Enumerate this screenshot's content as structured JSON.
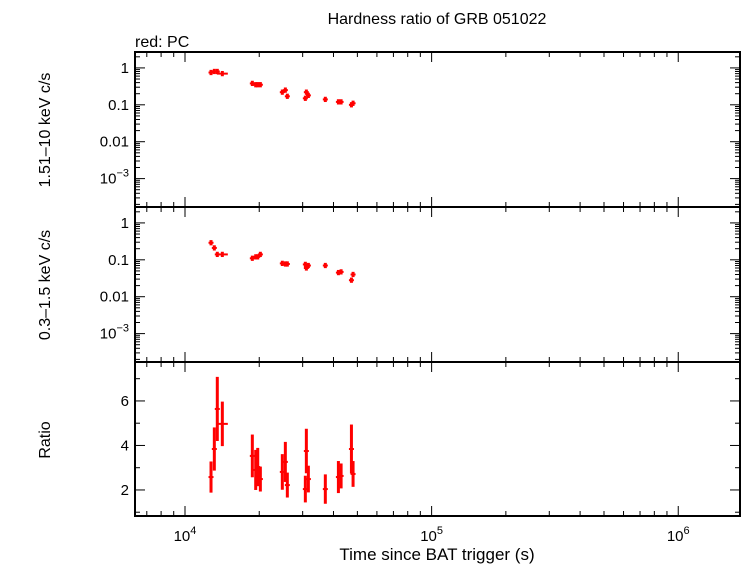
{
  "chart_data": [
    {
      "type": "scatter",
      "title": "Hardness ratio of GRB 051022",
      "legend": "red: PC",
      "series_color": "#ff0000",
      "xlabel": "Time since BAT trigger (s)",
      "xscale": "log",
      "xlim": [
        6270,
        1780000
      ],
      "xticks": [
        {
          "v": 10000,
          "b": "10",
          "e": "4"
        },
        {
          "v": 100000,
          "b": "10",
          "e": "5"
        },
        {
          "v": 1000000,
          "b": "10",
          "e": "6"
        }
      ],
      "panels": [
        {
          "ylabel": "1.51–10 keV c/s",
          "yscale": "log",
          "ylim": [
            0.00017,
            2.7
          ],
          "yticks": [
            {
              "v": 1,
              "b": "1",
              "e": ""
            },
            {
              "v": 0.1,
              "b": "0.1",
              "e": ""
            },
            {
              "v": 0.01,
              "b": "0.01",
              "e": ""
            },
            {
              "v": 0.001,
              "b": "10",
              "e": "−3"
            }
          ],
          "y": [
            0.75,
            0.8,
            0.8,
            0.7,
            0.38,
            0.35,
            0.35,
            0.35,
            0.22,
            0.25,
            0.17,
            0.15,
            0.22,
            0.18,
            0.14,
            0.12,
            0.12,
            0.1,
            0.11
          ]
        },
        {
          "ylabel": "0.3–1.5 keV c/s",
          "yscale": "log",
          "ylim": [
            0.00017,
            2.7
          ],
          "yticks": [
            {
              "v": 1,
              "b": "1",
              "e": ""
            },
            {
              "v": 0.1,
              "b": "0.1",
              "e": ""
            },
            {
              "v": 0.01,
              "b": "0.01",
              "e": ""
            },
            {
              "v": 0.001,
              "b": "10",
              "e": "−3"
            }
          ],
          "y": [
            0.29,
            0.21,
            0.14,
            0.14,
            0.11,
            0.12,
            0.12,
            0.14,
            0.08,
            0.077,
            0.077,
            0.075,
            0.06,
            0.07,
            0.07,
            0.045,
            0.047,
            0.028,
            0.04
          ]
        },
        {
          "ylabel": "Ratio",
          "yscale": "linear",
          "ylim": [
            0.83,
            7.75
          ],
          "yticks": [
            {
              "v": 2,
              "b": "2",
              "e": ""
            },
            {
              "v": 4,
              "b": "4",
              "e": ""
            },
            {
              "v": 6,
              "b": "6",
              "e": ""
            }
          ],
          "y": [
            2.58,
            3.84,
            5.64,
            4.97,
            3.53,
            2.9,
            3.03,
            2.49,
            2.81,
            3.26,
            2.22,
            2.04,
            3.75,
            2.49,
            2.04,
            2.58,
            2.63,
            3.84,
            2.72
          ],
          "yerr": [
            0.7,
            0.97,
            1.44,
            1.0,
            0.96,
            0.9,
            0.86,
            0.56,
            0.8,
            0.9,
            0.56,
            0.6,
            1.0,
            0.6,
            0.66,
            0.72,
            0.56,
            1.1,
            0.58
          ]
        }
      ],
      "x": [
        12750,
        13150,
        13520,
        14170,
        18750,
        19350,
        19720,
        20210,
        24810,
        25520,
        26000,
        30760,
        31050,
        31640,
        37070,
        41880,
        42950,
        47300,
        48030
      ]
    }
  ]
}
